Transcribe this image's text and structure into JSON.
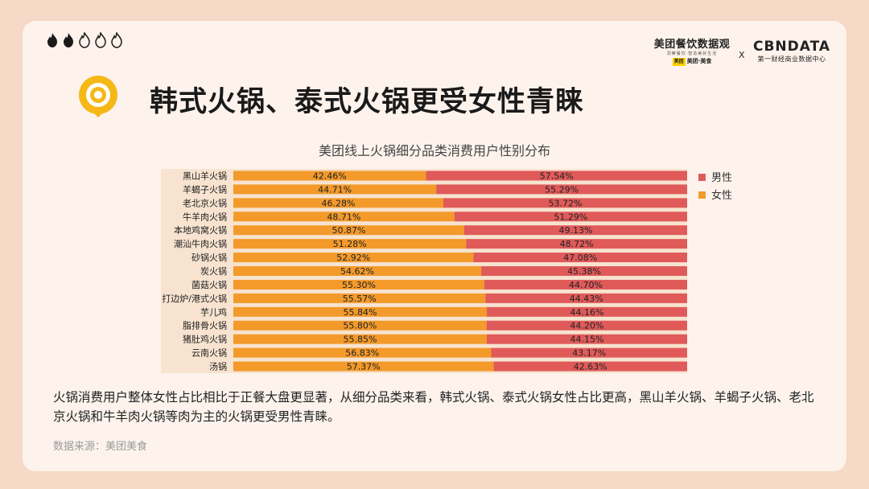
{
  "header": {
    "flame_rating": {
      "filled": 2,
      "total": 5,
      "icon": "flame-icon",
      "filled_color": "#1a1a1a",
      "empty_color": "#1a1a1a"
    },
    "brand_left": {
      "name": "美团餐饮数据观",
      "tagline": "洞察餐饮·智造美好生活",
      "sub": "美团·美食",
      "sub_badge": "美团"
    },
    "brand_separator": "X",
    "brand_right": {
      "name": "CBNDATA",
      "sub": "第一财经商业数据中心"
    }
  },
  "title": "韩式火锅、泰式火锅更受女性青睐",
  "chart_data": {
    "type": "bar",
    "orientation": "horizontal",
    "stacked": true,
    "title": "美团线上火锅细分品类消费用户性别分布",
    "categories": [
      "黑山羊火锅",
      "羊蝎子火锅",
      "老北京火锅",
      "牛羊肉火锅",
      "本地鸡窝火锅",
      "潮汕牛肉火锅",
      "砂锅火锅",
      "炭火锅",
      "菌菇火锅",
      "打边炉/港式火锅",
      "芋儿鸡",
      "脂排骨火锅",
      "猪肚鸡火锅",
      "云南火锅",
      "汤锅"
    ],
    "series": [
      {
        "name": "女性",
        "color": "#f39a2b",
        "values": [
          42.46,
          44.71,
          46.28,
          48.71,
          50.87,
          51.28,
          52.92,
          54.62,
          55.3,
          55.57,
          55.84,
          55.8,
          55.85,
          56.83,
          57.37
        ]
      },
      {
        "name": "男性",
        "color": "#e05a5a",
        "values": [
          57.54,
          55.29,
          53.72,
          51.29,
          49.13,
          48.72,
          47.08,
          45.38,
          44.7,
          44.43,
          44.16,
          44.2,
          44.15,
          43.17,
          42.63
        ]
      }
    ],
    "data_labels": {
      "女性": [
        "42.46%",
        "44.71%",
        "46.28%",
        "48.71%",
        "50.87%",
        "51.28%",
        "52.92%",
        "54.62%",
        "55.30%",
        "55.57%",
        "55.84%",
        "55.80%",
        "55.85%",
        "56.83%",
        "57.37%"
      ],
      "男性": [
        "57.54%",
        "55.29%",
        "53.72%",
        "51.29%",
        "49.13%",
        "48.72%",
        "47.08%",
        "45.38%",
        "44.70%",
        "44.43%",
        "44.16%",
        "44.20%",
        "44.15%",
        "43.17%",
        "42.63%"
      ]
    },
    "legend": {
      "placement": "right-top",
      "order": [
        "男性",
        "女性"
      ]
    },
    "xlim": [
      0,
      100
    ],
    "grid": false,
    "background": "#f7e3cf"
  },
  "description": "火锅消费用户整体女性占比相比于正餐大盘更显著，从细分品类来看，韩式火锅、泰式火锅女性占比更高，黑山羊火锅、羊蝎子火锅、老北京火锅和牛羊肉火锅等肉为主的火锅更受男性青睐。",
  "source": "数据来源：美团美食",
  "colors": {
    "accent_yellow": "#f5b817",
    "text_dark": "#1a1a1a"
  }
}
